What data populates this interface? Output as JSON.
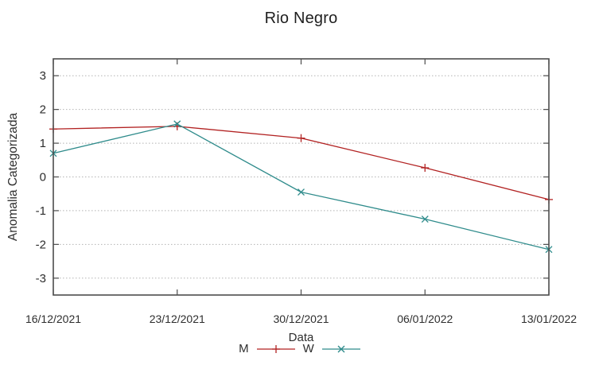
{
  "page": {
    "background": "#ffffff"
  },
  "chart_data": {
    "type": "line",
    "title": "Rio Negro",
    "xlabel": "Data",
    "ylabel": "Anomalia Categorizada",
    "categories": [
      "16/12/2021",
      "23/12/2021",
      "30/12/2021",
      "06/01/2022",
      "13/01/2022"
    ],
    "yticks": [
      3,
      2,
      1,
      0,
      -1,
      -2,
      -3
    ],
    "ylim": [
      -3.5,
      3.5
    ],
    "grid": "horizontal-dotted",
    "legend_position": "bottom-center",
    "colors": {
      "axis": "#4d4d4d",
      "grid": "#b3b3b3",
      "text": "#2e2e2e"
    },
    "series": [
      {
        "name": "M",
        "color": "#b22222",
        "marker": "plus",
        "values": [
          1.42,
          1.5,
          1.15,
          0.27,
          -0.67
        ]
      },
      {
        "name": "W",
        "color": "#2e8b8b",
        "marker": "cross",
        "values": [
          0.7,
          1.57,
          -0.45,
          -1.25,
          -2.15
        ]
      }
    ]
  }
}
